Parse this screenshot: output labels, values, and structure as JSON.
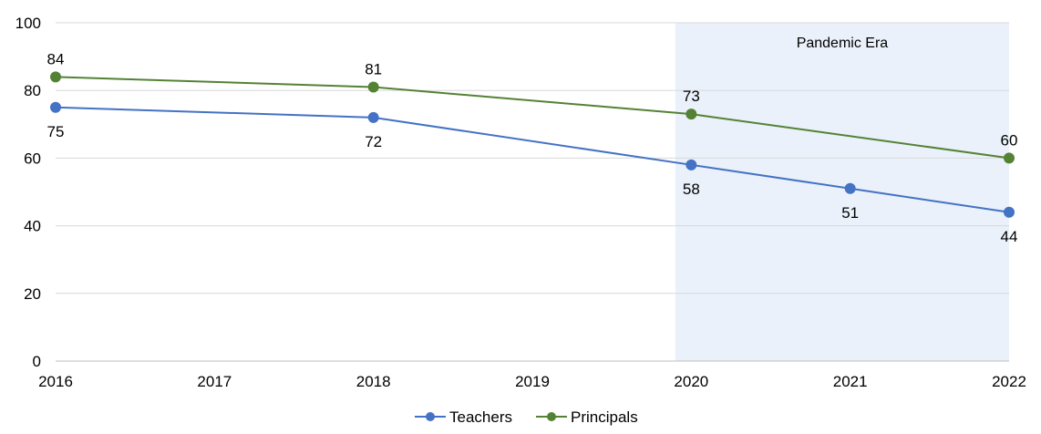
{
  "chart_data": {
    "type": "line",
    "title": "",
    "xlabel": "",
    "ylabel": "",
    "x": [
      2016,
      2017,
      2018,
      2019,
      2020,
      2021,
      2022
    ],
    "x_tick_labels": [
      "2016",
      "2017",
      "2018",
      "2019",
      "2020",
      "2021",
      "2022"
    ],
    "ylim": [
      0,
      100
    ],
    "y_ticks": [
      0,
      20,
      40,
      60,
      80,
      100
    ],
    "y_tick_labels": [
      "0",
      "20",
      "40",
      "60",
      "80",
      "100"
    ],
    "grid": "horizontal",
    "legend_position": "bottom-center",
    "shaded_region": {
      "x_start": 2019.9,
      "x_end": 2022,
      "label": "Pandemic Era",
      "color": "#EAF1FA"
    },
    "series": [
      {
        "name": "Teachers",
        "color": "#4472C4",
        "points": [
          {
            "x": 2016,
            "y": 75,
            "label": "75",
            "label_pos": "below"
          },
          {
            "x": 2018,
            "y": 72,
            "label": "72",
            "label_pos": "below"
          },
          {
            "x": 2020,
            "y": 58,
            "label": "58",
            "label_pos": "below"
          },
          {
            "x": 2021,
            "y": 51,
            "label": "51",
            "label_pos": "below"
          },
          {
            "x": 2022,
            "y": 44,
            "label": "44",
            "label_pos": "below"
          }
        ]
      },
      {
        "name": "Principals",
        "color": "#548235",
        "points": [
          {
            "x": 2016,
            "y": 84,
            "label": "84",
            "label_pos": "above"
          },
          {
            "x": 2018,
            "y": 81,
            "label": "81",
            "label_pos": "above"
          },
          {
            "x": 2020,
            "y": 73,
            "label": "73",
            "label_pos": "above"
          },
          {
            "x": 2022,
            "y": 60,
            "label": "60",
            "label_pos": "above"
          }
        ]
      }
    ]
  },
  "colors": {
    "grid": "#D9D9D9",
    "axis": "#BFBFBF",
    "text": "#000000"
  }
}
